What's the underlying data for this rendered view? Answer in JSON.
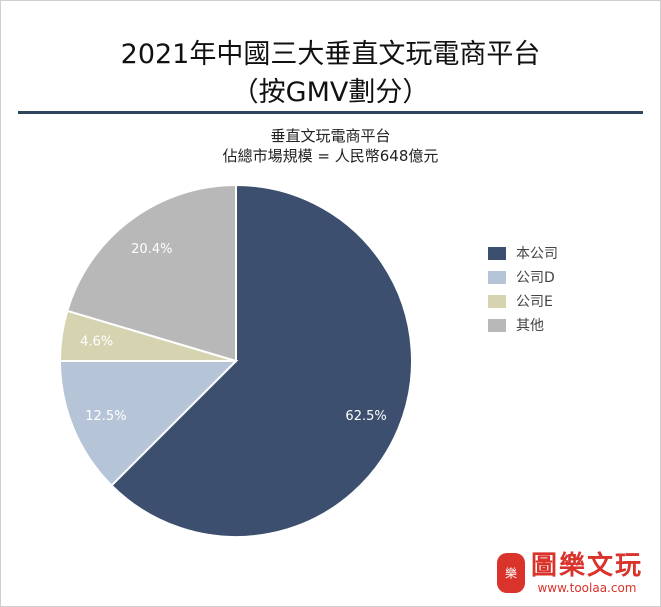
{
  "title_line1": "2021年中國三大垂直文玩電商平台",
  "title_line2": "（按GMV劃分）",
  "subtitle_line1": "垂直文玩電商平台",
  "subtitle_line2": "佔總市場規模 = 人民幣648億元",
  "chart_data": {
    "type": "pie",
    "title": "垂直文玩電商平台",
    "slices": [
      {
        "label": "本公司",
        "value": 62.5,
        "display": "62.5%",
        "color": "#3c4f6e"
      },
      {
        "label": "公司D",
        "value": 12.5,
        "display": "12.5%",
        "color": "#b6c4d8"
      },
      {
        "label": "公司E",
        "value": 4.6,
        "display": "4.6%",
        "color": "#d6d3b0"
      },
      {
        "label": "其他",
        "value": 20.4,
        "display": "20.4%",
        "color": "#b9b8b8"
      }
    ],
    "start": "12 o'clock",
    "direction": "clockwise",
    "legend_position": "right"
  },
  "watermark": {
    "seal_text": "樂",
    "brand": "圖樂文玩",
    "url": "www.toolaa.com"
  }
}
